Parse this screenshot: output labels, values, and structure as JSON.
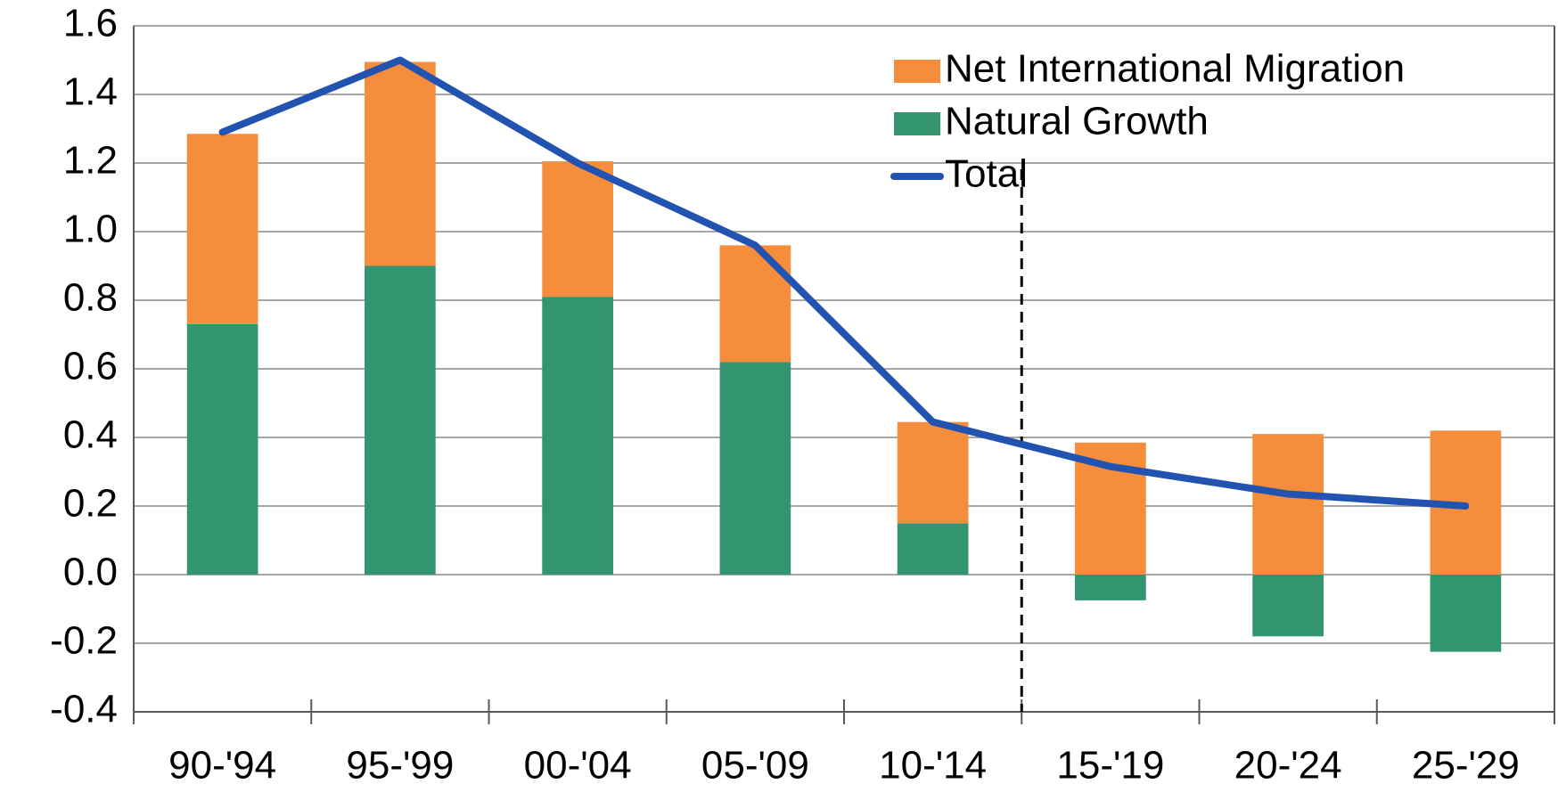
{
  "chart_data": {
    "type": "bar",
    "categories": [
      "90-'94",
      "95-'99",
      "00-'04",
      "05-'09",
      "10-'14",
      "15-'19",
      "20-'24",
      "25-'29"
    ],
    "series": [
      {
        "name": "Natural Growth",
        "color": "#339470",
        "values": [
          0.73,
          0.9,
          0.81,
          0.62,
          0.15,
          -0.075,
          -0.18,
          -0.225
        ]
      },
      {
        "name": "Net International Migration",
        "color": "#f58d3c",
        "values": [
          0.555,
          0.595,
          0.395,
          0.34,
          0.295,
          0.385,
          0.41,
          0.42
        ]
      },
      {
        "name": "Total",
        "color": "#2353b0",
        "type": "line",
        "values": [
          1.29,
          1.5,
          1.2,
          0.96,
          0.445,
          0.315,
          0.235,
          0.2
        ]
      }
    ],
    "ylim": [
      -0.4,
      1.6
    ],
    "yticks": [
      {
        "value": -0.4,
        "label": "-0.4"
      },
      {
        "value": -0.2,
        "label": "-0.2"
      },
      {
        "value": 0,
        "label": "0.0"
      },
      {
        "value": 0.2,
        "label": "0.2"
      },
      {
        "value": 0.4,
        "label": "0.4"
      },
      {
        "value": 0.6,
        "label": "0.6"
      },
      {
        "value": 0.8,
        "label": "0.8"
      },
      {
        "value": 1.0,
        "label": "1.0"
      },
      {
        "value": 1.2,
        "label": "1.2"
      },
      {
        "value": 1.4,
        "label": "1.4"
      },
      {
        "value": 1.6,
        "label": "1.6"
      }
    ],
    "grid": true,
    "legend": "upper right"
  }
}
